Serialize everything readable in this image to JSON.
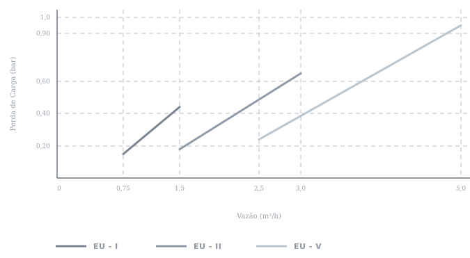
{
  "chart_data": {
    "type": "line",
    "xlabel": "Vazão (m³/h)",
    "ylabel": "Perda de Carga (bar)",
    "x_ticks": [
      {
        "value": 0,
        "label": "0"
      },
      {
        "value": 0.75,
        "label": "0,75"
      },
      {
        "value": 1.5,
        "label": "1,5"
      },
      {
        "value": 2.5,
        "label": "2,5"
      },
      {
        "value": 3.0,
        "label": "3,0"
      },
      {
        "value": 5.0,
        "label": "5,0"
      }
    ],
    "y_ticks": [
      {
        "value": 0.2,
        "label": "0,20"
      },
      {
        "value": 0.4,
        "label": "0,40"
      },
      {
        "value": 0.6,
        "label": "0,60"
      },
      {
        "value": 0.9,
        "label": "0,90"
      },
      {
        "value": 1.0,
        "label": "1,0"
      }
    ],
    "grid": true,
    "legend_position": "bottom",
    "series": [
      {
        "name": "EU - I",
        "color": "#7a8591",
        "x": [
          0.75,
          1.5
        ],
        "y": [
          0.15,
          0.44
        ]
      },
      {
        "name": "EU - II",
        "color": "#8f9ba8",
        "x": [
          1.5,
          3.0
        ],
        "y": [
          0.18,
          0.65
        ]
      },
      {
        "name": "EU - V",
        "color": "#b9c5cf",
        "x": [
          2.5,
          5.0
        ],
        "y": [
          0.24,
          0.95
        ]
      }
    ]
  }
}
